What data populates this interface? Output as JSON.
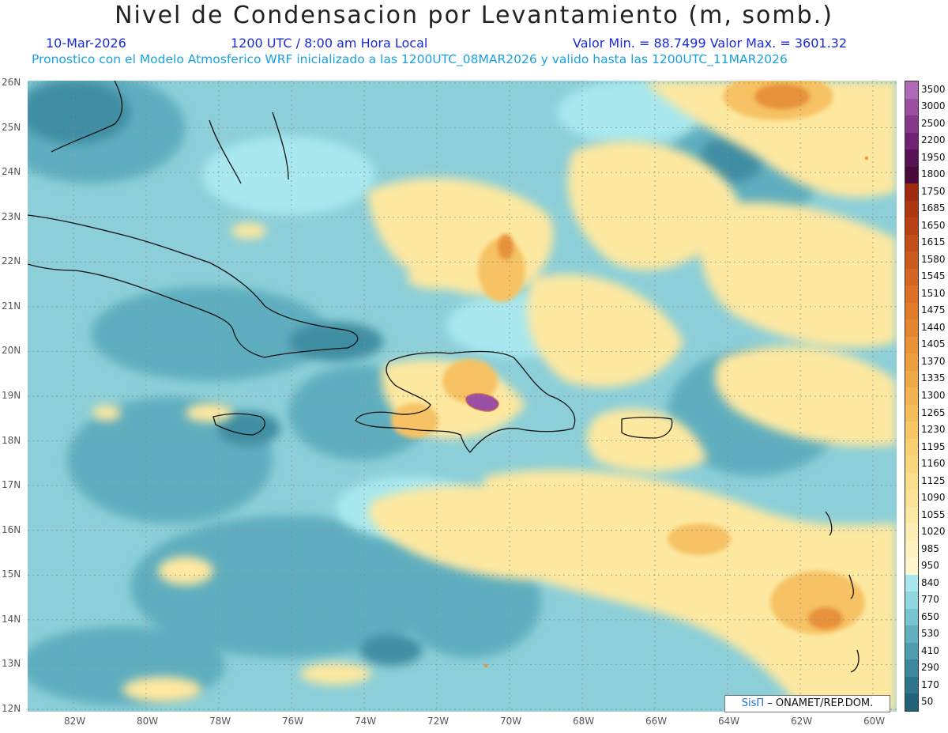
{
  "header": {
    "title": "Nivel de Condensacion por Levantamiento (m, somb.)",
    "date": "10-Mar-2026",
    "time": "1200 UTC / 8:00 am Hora Local",
    "minmax": "Valor Min. = 88.7499   Valor Max. = 3601.32",
    "forecast": "Pronostico con el Modelo Atmosferico WRF inicializado a las 1200UTC_08MAR2026 y valido hasta las  1200UTC_11MAR2026"
  },
  "axes": {
    "lat_labels": [
      "26N",
      "25N",
      "24N",
      "23N",
      "22N",
      "21N",
      "20N",
      "19N",
      "18N",
      "17N",
      "16N",
      "15N",
      "14N",
      "13N",
      "12N"
    ],
    "lon_labels": [
      "82W",
      "80W",
      "78W",
      "76W",
      "74W",
      "72W",
      "70W",
      "68W",
      "66W",
      "64W",
      "62W",
      "60W"
    ]
  },
  "colorbar": {
    "labels": [
      "3500",
      "3000",
      "2500",
      "2200",
      "1950",
      "1800",
      "1750",
      "1685",
      "1650",
      "1615",
      "1580",
      "1545",
      "1510",
      "1475",
      "1440",
      "1405",
      "1370",
      "1335",
      "1300",
      "1265",
      "1230",
      "1195",
      "1160",
      "1125",
      "1090",
      "1055",
      "1020",
      "985",
      "950",
      "840",
      "770",
      "650",
      "530",
      "410",
      "290",
      "170",
      "50"
    ],
    "colors": [
      "#b06ab8",
      "#9a4fa2",
      "#85378c",
      "#6f2374",
      "#5a1257",
      "#4a0a3c",
      "#a02a10",
      "#ad3613",
      "#b84216",
      "#c24e1a",
      "#cb5a1e",
      "#d36622",
      "#da7127",
      "#e07c2c",
      "#e58732",
      "#e99238",
      "#ed9e40",
      "#f0a948",
      "#f2b352",
      "#f4bd5c",
      "#f6c667",
      "#f8cf72",
      "#f9d77e",
      "#fade8b",
      "#fbe498",
      "#fce9a6",
      "#fdeeb4",
      "#fef2c2",
      "#fff6d0",
      "#a8e8ee",
      "#8fd6e0",
      "#78c4d0",
      "#62b0bf",
      "#4e9cae",
      "#3d889d",
      "#2e748b",
      "#22617a"
    ]
  },
  "map": {
    "palette": {
      "ocean": "#8ccfd8",
      "low": "#5faebf",
      "very_low": "#3f8ea3",
      "mid": "#a8e8ee",
      "warm": "#fde8a0",
      "hot": "#f6c264",
      "hotter": "#e8913a",
      "peak": "#9a4fa2",
      "coast": "#111111"
    }
  },
  "credit": {
    "sis": "SisΠ",
    "org": "– ONAMET/REP.DOM."
  }
}
